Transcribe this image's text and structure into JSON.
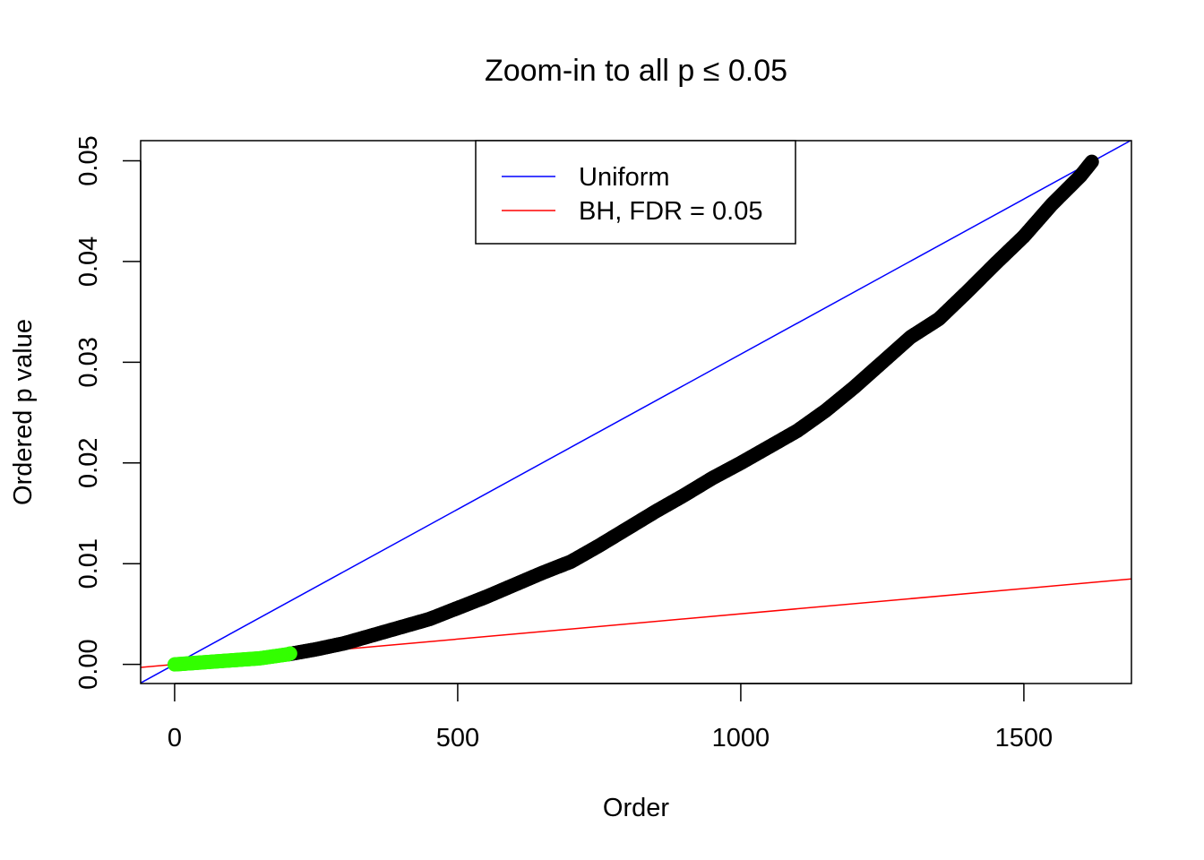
{
  "chart_data": {
    "type": "scatter",
    "title": "Zoom-in to all p ≤ 0.05",
    "xlabel": "Order",
    "ylabel": "Ordered p value",
    "xlim": [
      -60,
      1690
    ],
    "ylim": [
      -0.0019,
      0.052
    ],
    "x_ticks": [
      0,
      500,
      1000,
      1500
    ],
    "x_tick_labels": [
      "0",
      "500",
      "1000",
      "1500"
    ],
    "y_ticks": [
      0,
      0.01,
      0.02,
      0.03,
      0.04,
      0.05
    ],
    "y_tick_labels": [
      "0.00",
      "0.01",
      "0.02",
      "0.03",
      "0.04",
      "0.05"
    ],
    "grid": false,
    "legend_position": "top-center",
    "legend": [
      {
        "label": "Uniform",
        "color": "#0000ff"
      },
      {
        "label": "BH, FDR = 0.05",
        "color": "#ff0000"
      }
    ],
    "reference_lines": [
      {
        "name": "Uniform",
        "slope": 3.08e-05,
        "intercept": 0,
        "color": "#0000ff"
      },
      {
        "name": "BH, FDR = 0.05",
        "slope": 5.02e-06,
        "intercept": 0,
        "color": "#ff0000"
      }
    ],
    "series": [
      {
        "color": "#000000",
        "x": [
          200,
          250,
          300,
          350,
          400,
          450,
          500,
          550,
          600,
          650,
          700,
          750,
          800,
          850,
          900,
          950,
          1000,
          1050,
          1100,
          1150,
          1200,
          1250,
          1300,
          1350,
          1400,
          1450,
          1500,
          1550,
          1600,
          1620
        ],
        "y": [
          0.001,
          0.0015,
          0.0021,
          0.0029,
          0.0037,
          0.0045,
          0.0056,
          0.0067,
          0.0079,
          0.0091,
          0.0102,
          0.0118,
          0.0135,
          0.0152,
          0.0168,
          0.0185,
          0.02,
          0.0216,
          0.0232,
          0.0252,
          0.0275,
          0.03,
          0.0325,
          0.0343,
          0.037,
          0.0398,
          0.0425,
          0.0457,
          0.0485,
          0.0499
        ]
      },
      {
        "color": "#33ff00",
        "x": [
          0,
          25,
          50,
          75,
          100,
          125,
          150,
          175,
          200,
          205
        ],
        "y": [
          0.0,
          0.0001,
          0.0002,
          0.0003,
          0.0004,
          0.0005,
          0.0006,
          0.0008,
          0.001,
          0.0011
        ]
      }
    ]
  }
}
